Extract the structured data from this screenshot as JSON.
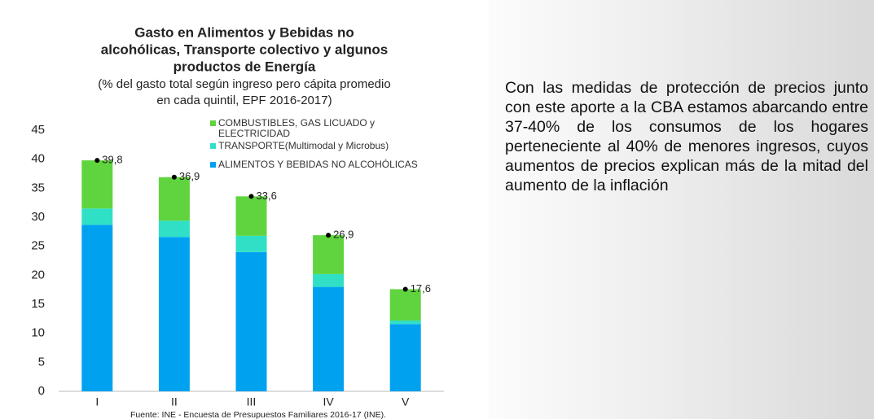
{
  "chart_data": {
    "type": "stacked_bar",
    "title": [
      "Gasto en Alimentos y Bebidas no",
      "alcohólicas, Transporte colectivo y algunos",
      "productos de Energía"
    ],
    "subtitle": [
      "(% del gasto total según ingreso pero cápita promedio",
      "en cada quintil, EPF 2016-2017)"
    ],
    "categories": [
      "I",
      "II",
      "III",
      "IV",
      "V"
    ],
    "series": [
      {
        "name": "ALIMENTOS Y BEBIDAS NO ALCOHÓLICAS",
        "color": "#00a2f0",
        "values": [
          28.7,
          26.6,
          24.0,
          18.0,
          11.6
        ]
      },
      {
        "name": "TRANSPORTE(Multimodal y Microbus)",
        "color": "#2fe0c6",
        "values": [
          2.8,
          2.8,
          2.8,
          2.2,
          0.6
        ]
      },
      {
        "name": "COMBUSTIBLES, GAS LICUADO y ELECTRICIDAD",
        "color": "#5fd43e",
        "values": [
          8.3,
          7.5,
          6.8,
          6.7,
          5.4
        ]
      }
    ],
    "totals": [
      39.8,
      36.9,
      33.6,
      26.9,
      17.6
    ],
    "total_labels": [
      "39,8",
      "36,9",
      "33,6",
      "26,9",
      "17,6"
    ],
    "ylim": [
      0,
      45
    ],
    "yticks": [
      0,
      5,
      10,
      15,
      20,
      25,
      30,
      35,
      40,
      45
    ],
    "grid": false,
    "source": "Fuente: INE - Encuesta de Presupuestos Familiares 2016-17 (INE).",
    "paragraph": "Con las medidas de protección de precios junto con este aporte a la CBA estamos abarcando entre 37-40% de los consumos de los hogares perteneciente al 40% de menores ingresos, cuyos aumentos de precios explican más de la mitad del aumento de la inflación"
  }
}
